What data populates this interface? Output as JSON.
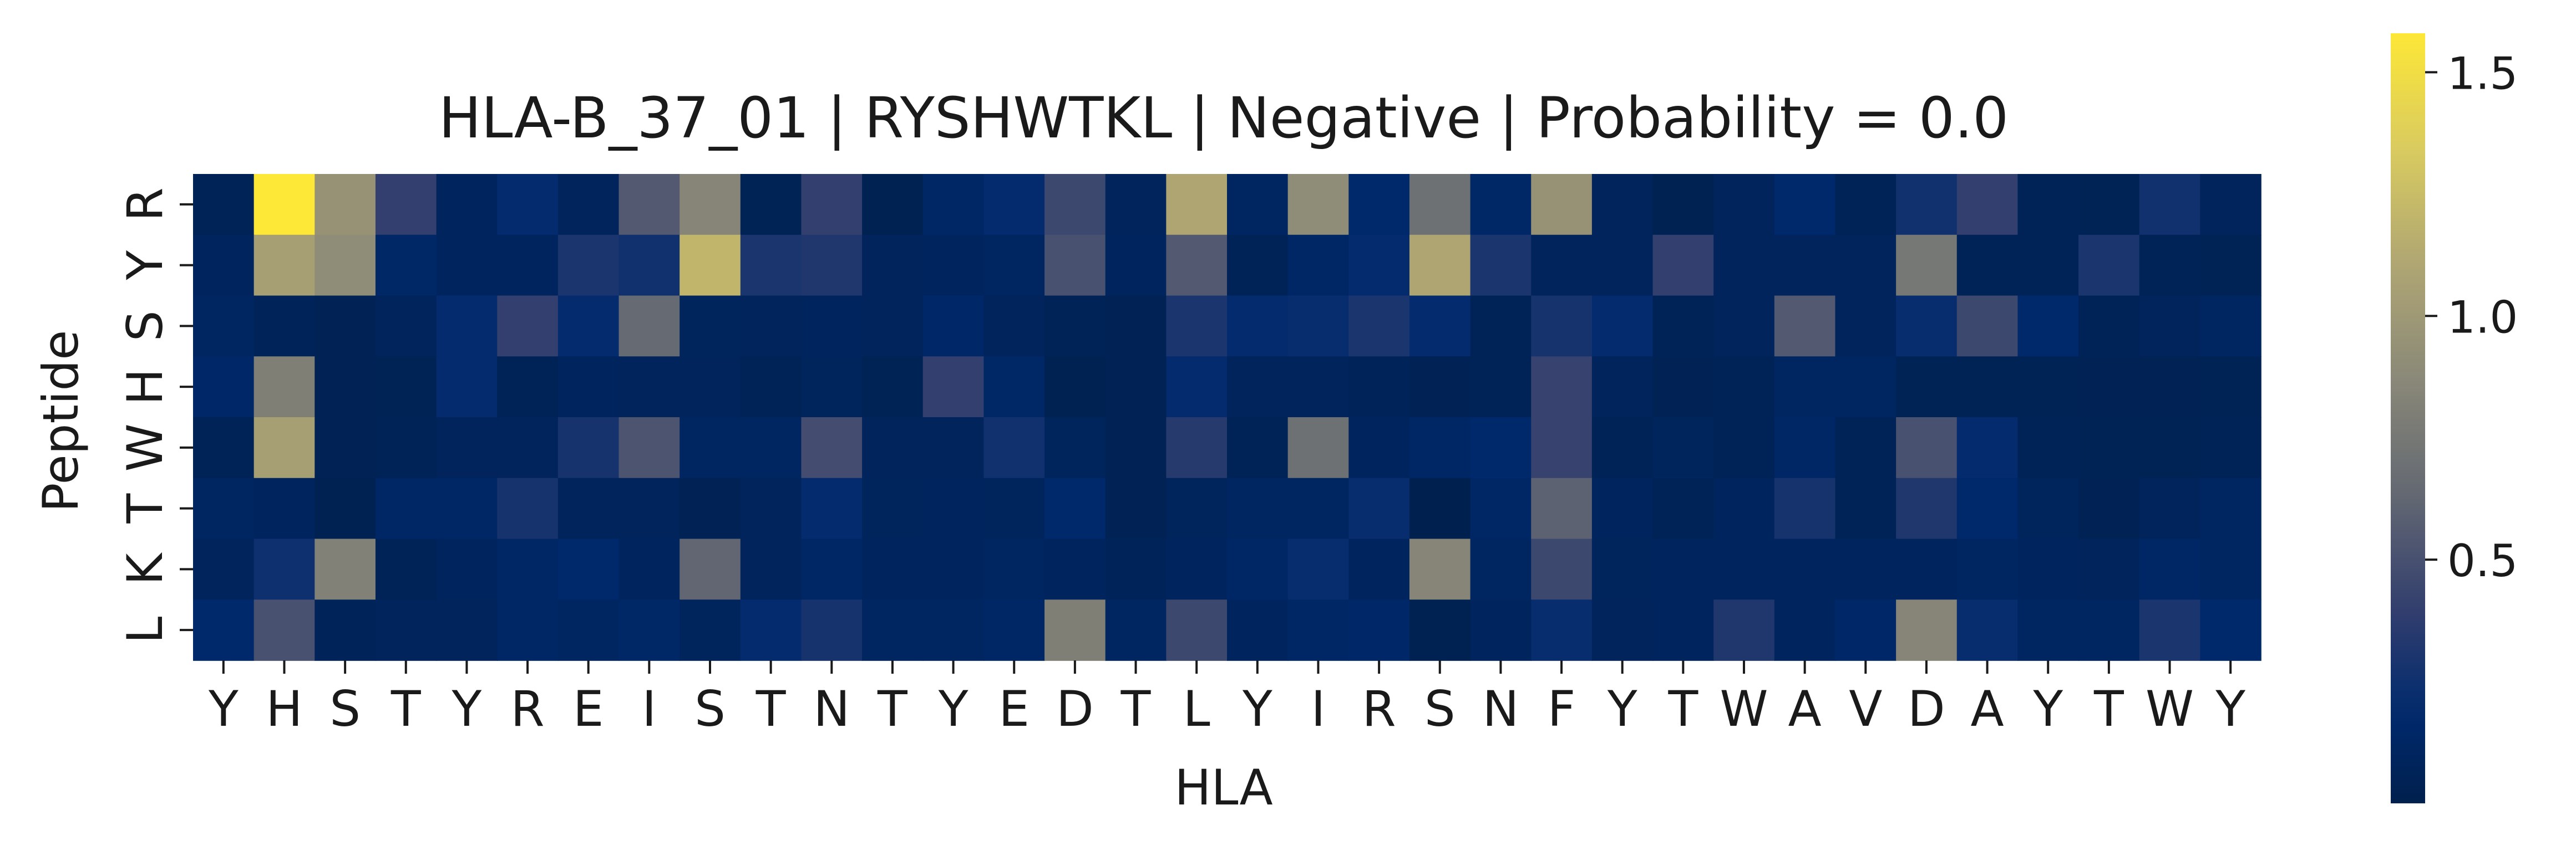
{
  "chart_data": {
    "type": "heatmap",
    "title": "HLA-B_37_01 | RYSHWTKL | Negative | Probability = 0.0",
    "xlabel": "HLA",
    "ylabel": "Peptide",
    "x_categories": [
      "Y",
      "H",
      "S",
      "T",
      "Y",
      "R",
      "E",
      "I",
      "S",
      "T",
      "N",
      "T",
      "Y",
      "E",
      "D",
      "T",
      "L",
      "Y",
      "I",
      "R",
      "S",
      "N",
      "F",
      "Y",
      "T",
      "W",
      "A",
      "V",
      "D",
      "A",
      "Y",
      "T",
      "W",
      "Y"
    ],
    "y_categories": [
      "R",
      "Y",
      "S",
      "H",
      "W",
      "T",
      "K",
      "L"
    ],
    "colormap": "cividis",
    "colorbar": {
      "range": [
        0.0,
        1.58
      ],
      "ticks": [
        0.5,
        1.0,
        1.5
      ],
      "tick_labels": [
        "0.5",
        "1.0",
        "1.5"
      ]
    },
    "values": [
      [
        0.06,
        1.58,
        0.95,
        0.4,
        0.1,
        0.2,
        0.08,
        0.55,
        0.85,
        0.05,
        0.4,
        0.03,
        0.14,
        0.2,
        0.45,
        0.08,
        1.1,
        0.12,
        0.9,
        0.18,
        0.7,
        0.15,
        0.95,
        0.08,
        0.03,
        0.08,
        0.18,
        0.06,
        0.26,
        0.4,
        0.06,
        0.05,
        0.26,
        0.08
      ],
      [
        0.1,
        1.05,
        0.9,
        0.15,
        0.1,
        0.1,
        0.3,
        0.26,
        1.2,
        0.3,
        0.32,
        0.08,
        0.1,
        0.12,
        0.5,
        0.1,
        0.55,
        0.06,
        0.14,
        0.2,
        1.1,
        0.3,
        0.08,
        0.08,
        0.4,
        0.08,
        0.08,
        0.08,
        0.75,
        0.06,
        0.06,
        0.3,
        0.06,
        0.05
      ],
      [
        0.12,
        0.07,
        0.04,
        0.08,
        0.2,
        0.4,
        0.2,
        0.65,
        0.09,
        0.08,
        0.1,
        0.08,
        0.16,
        0.08,
        0.06,
        0.04,
        0.3,
        0.2,
        0.22,
        0.3,
        0.2,
        0.06,
        0.28,
        0.2,
        0.06,
        0.08,
        0.55,
        0.08,
        0.22,
        0.45,
        0.18,
        0.06,
        0.08,
        0.12
      ],
      [
        0.16,
        0.8,
        0.04,
        0.05,
        0.2,
        0.06,
        0.1,
        0.08,
        0.08,
        0.06,
        0.09,
        0.05,
        0.4,
        0.15,
        0.03,
        0.04,
        0.2,
        0.08,
        0.08,
        0.07,
        0.04,
        0.06,
        0.42,
        0.08,
        0.04,
        0.06,
        0.12,
        0.12,
        0.05,
        0.05,
        0.05,
        0.04,
        0.04,
        0.05
      ],
      [
        0.06,
        1.05,
        0.04,
        0.06,
        0.08,
        0.08,
        0.28,
        0.52,
        0.12,
        0.12,
        0.48,
        0.08,
        0.08,
        0.26,
        0.09,
        0.04,
        0.35,
        0.06,
        0.7,
        0.1,
        0.14,
        0.18,
        0.42,
        0.06,
        0.09,
        0.06,
        0.14,
        0.06,
        0.5,
        0.2,
        0.06,
        0.05,
        0.05,
        0.06
      ],
      [
        0.12,
        0.1,
        0.03,
        0.14,
        0.14,
        0.28,
        0.08,
        0.08,
        0.04,
        0.08,
        0.2,
        0.09,
        0.1,
        0.09,
        0.18,
        0.04,
        0.09,
        0.12,
        0.12,
        0.22,
        0.02,
        0.14,
        0.6,
        0.1,
        0.06,
        0.1,
        0.28,
        0.06,
        0.32,
        0.18,
        0.09,
        0.04,
        0.08,
        0.12
      ],
      [
        0.08,
        0.25,
        0.82,
        0.06,
        0.1,
        0.14,
        0.18,
        0.1,
        0.62,
        0.08,
        0.14,
        0.1,
        0.1,
        0.12,
        0.1,
        0.07,
        0.1,
        0.14,
        0.22,
        0.1,
        0.85,
        0.12,
        0.45,
        0.09,
        0.1,
        0.1,
        0.1,
        0.1,
        0.1,
        0.12,
        0.1,
        0.08,
        0.14,
        0.12
      ],
      [
        0.18,
        0.5,
        0.07,
        0.08,
        0.08,
        0.14,
        0.12,
        0.15,
        0.09,
        0.2,
        0.28,
        0.12,
        0.12,
        0.14,
        0.8,
        0.12,
        0.45,
        0.1,
        0.14,
        0.16,
        0.03,
        0.1,
        0.22,
        0.08,
        0.1,
        0.32,
        0.1,
        0.16,
        0.85,
        0.22,
        0.12,
        0.12,
        0.3,
        0.18
      ]
    ]
  }
}
